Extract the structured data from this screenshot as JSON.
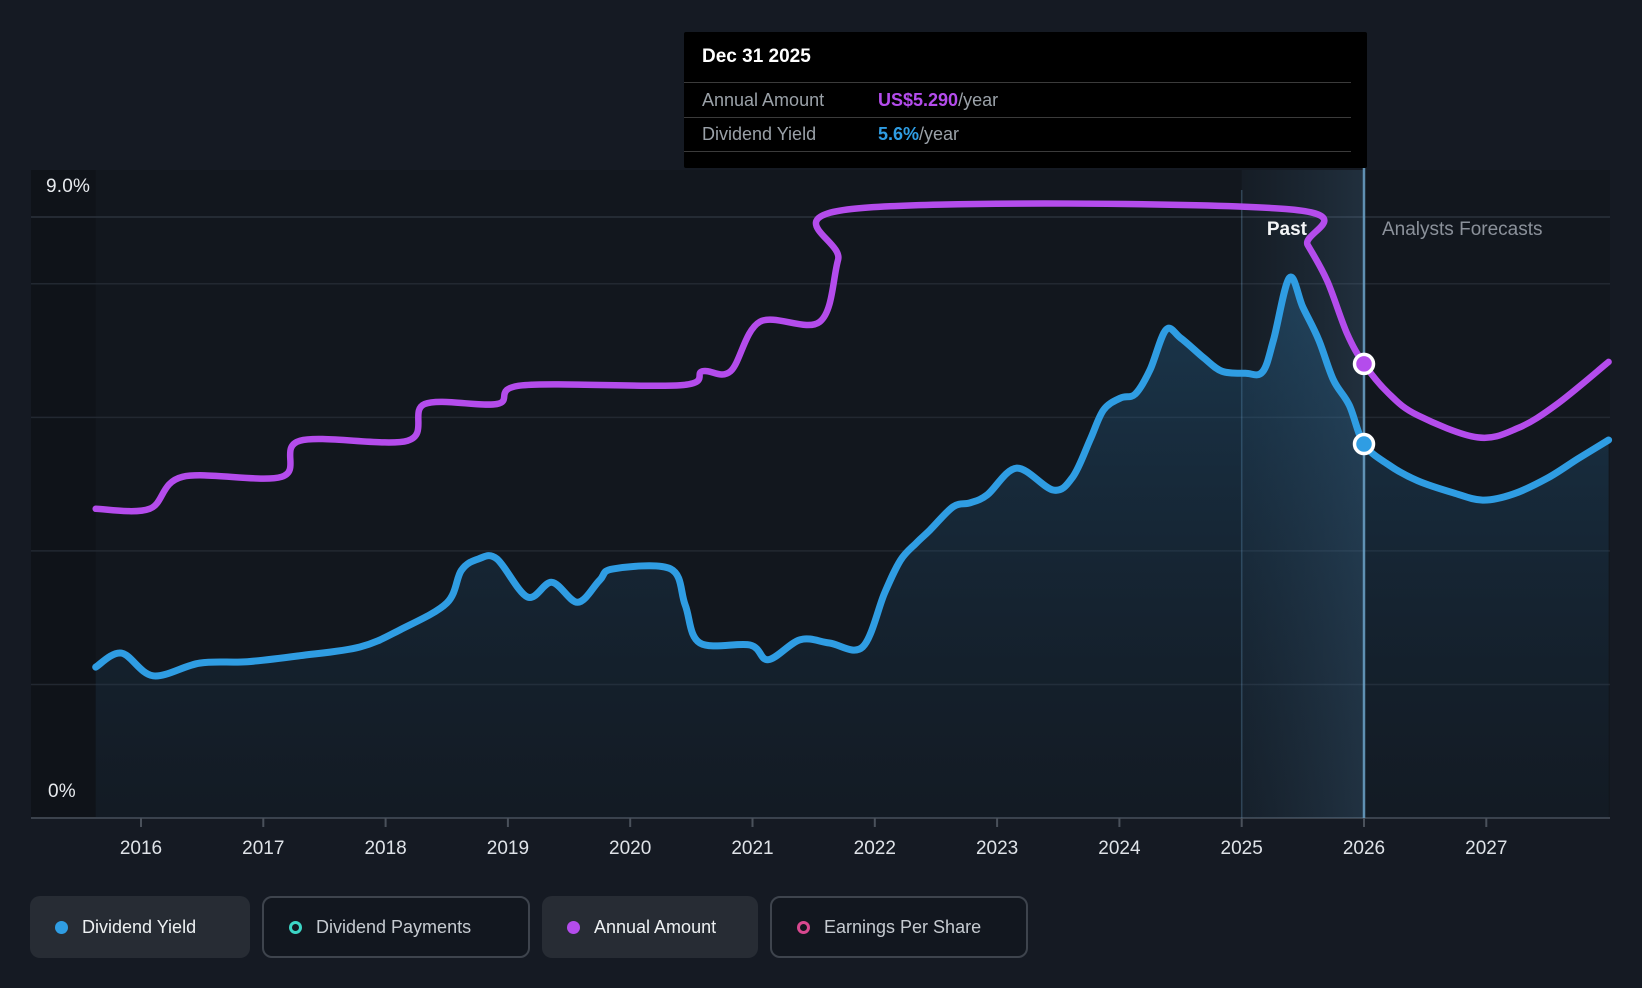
{
  "tooltip": {
    "date": "Dec 31 2025",
    "rows": [
      {
        "label": "Annual Amount",
        "value": "US$5.290",
        "suffix": "/year",
        "color": "#b44cec"
      },
      {
        "label": "Dividend Yield",
        "value": "5.6%",
        "suffix": "/year",
        "color": "#2f9de3"
      }
    ]
  },
  "period_labels": {
    "past": "Past",
    "forecast": "Analysts Forecasts"
  },
  "axis": {
    "y_top_label": "9.0%",
    "y_bottom_label": "0%",
    "x_tick_labels": [
      "2016",
      "2017",
      "2018",
      "2019",
      "2020",
      "2021",
      "2022",
      "2023",
      "2024",
      "2025",
      "2026",
      "2027"
    ]
  },
  "legend": [
    {
      "label": "Dividend Yield",
      "marker": "dot",
      "color": "#2f9de3",
      "active": true
    },
    {
      "label": "Dividend Payments",
      "marker": "ring",
      "color": "#3cd5c5",
      "active": false
    },
    {
      "label": "Annual Amount",
      "marker": "dot",
      "color": "#b44cec",
      "active": true
    },
    {
      "label": "Earnings Per Share",
      "marker": "ring",
      "color": "#d8488f",
      "active": false
    }
  ],
  "colors": {
    "background": "#151a23",
    "plot_background": "#12171e",
    "grid": "#222831",
    "grid_top": "#2b323c",
    "baseline": "#3b424c",
    "tick": "#4a515b",
    "crosshair": "#6ca3c9",
    "hover_band_left": "rgba(86,140,180,0.05)",
    "hover_band_right": "rgba(110,175,225,0.16)",
    "yield_line": "#2f9de3",
    "amount_line": "#b44cec",
    "area_top": "rgba(45,125,180,0.32)",
    "area_bottom": "rgba(30,70,105,0.08)"
  },
  "chart_data": {
    "type": "line",
    "title": "Dividend yield history and forecast",
    "x_range": [
      2015.63,
      2028.0
    ],
    "y_range_pct": [
      0,
      9.0
    ],
    "gridlines_pct": [
      2,
      4,
      6,
      8,
      9
    ],
    "grid": true,
    "legend_position": "bottom",
    "hover_year_band": [
      2025,
      2026
    ],
    "hover_date": "Dec 31 2025",
    "series": [
      {
        "name": "Dividend Yield",
        "unit": "%",
        "color": "#2f9de3",
        "area": true,
        "marker": [
          2026.0,
          5.6
        ],
        "points": [
          [
            2015.63,
            2.26
          ],
          [
            2015.84,
            2.47
          ],
          [
            2016.1,
            2.13
          ],
          [
            2016.48,
            2.32
          ],
          [
            2016.87,
            2.34
          ],
          [
            2017.3,
            2.43
          ],
          [
            2017.79,
            2.56
          ],
          [
            2018.12,
            2.82
          ],
          [
            2018.5,
            3.22
          ],
          [
            2018.62,
            3.71
          ],
          [
            2018.76,
            3.88
          ],
          [
            2018.91,
            3.88
          ],
          [
            2019.16,
            3.31
          ],
          [
            2019.36,
            3.53
          ],
          [
            2019.57,
            3.23
          ],
          [
            2019.75,
            3.56
          ],
          [
            2019.86,
            3.73
          ],
          [
            2020.33,
            3.73
          ],
          [
            2020.45,
            3.19
          ],
          [
            2020.57,
            2.62
          ],
          [
            2020.98,
            2.59
          ],
          [
            2021.13,
            2.37
          ],
          [
            2021.39,
            2.67
          ],
          [
            2021.63,
            2.62
          ],
          [
            2021.9,
            2.56
          ],
          [
            2022.08,
            3.37
          ],
          [
            2022.21,
            3.86
          ],
          [
            2022.34,
            4.12
          ],
          [
            2022.45,
            4.31
          ],
          [
            2022.64,
            4.66
          ],
          [
            2022.78,
            4.72
          ],
          [
            2022.92,
            4.84
          ],
          [
            2023.16,
            5.24
          ],
          [
            2023.46,
            4.91
          ],
          [
            2023.62,
            5.11
          ],
          [
            2023.76,
            5.66
          ],
          [
            2023.87,
            6.11
          ],
          [
            2024.01,
            6.29
          ],
          [
            2024.13,
            6.35
          ],
          [
            2024.25,
            6.71
          ],
          [
            2024.38,
            7.31
          ],
          [
            2024.5,
            7.19
          ],
          [
            2024.69,
            6.89
          ],
          [
            2024.84,
            6.69
          ],
          [
            2025.03,
            6.66
          ],
          [
            2025.17,
            6.68
          ],
          [
            2025.26,
            7.16
          ],
          [
            2025.39,
            8.09
          ],
          [
            2025.5,
            7.65
          ],
          [
            2025.63,
            7.16
          ],
          [
            2025.75,
            6.56
          ],
          [
            2025.88,
            6.18
          ],
          [
            2026.0,
            5.6
          ],
          [
            2026.2,
            5.29
          ],
          [
            2026.44,
            5.05
          ],
          [
            2026.73,
            4.87
          ],
          [
            2026.97,
            4.76
          ],
          [
            2027.22,
            4.85
          ],
          [
            2027.5,
            5.09
          ],
          [
            2027.75,
            5.38
          ],
          [
            2028.0,
            5.66
          ]
        ]
      },
      {
        "name": "Annual Amount",
        "unit": "display-equivalent % on yield axis (value is US$/year)",
        "color": "#b44cec",
        "area": false,
        "marker": [
          2026.0,
          6.8
        ],
        "tooltip_value": "US$5.290/year",
        "points": [
          [
            2015.63,
            4.63
          ],
          [
            2016.07,
            4.63
          ],
          [
            2016.34,
            5.11
          ],
          [
            2017.15,
            5.11
          ],
          [
            2017.3,
            5.65
          ],
          [
            2018.18,
            5.65
          ],
          [
            2018.32,
            6.2
          ],
          [
            2018.91,
            6.2
          ],
          [
            2019.12,
            6.48
          ],
          [
            2020.41,
            6.48
          ],
          [
            2020.59,
            6.69
          ],
          [
            2020.82,
            6.69
          ],
          [
            2021.06,
            7.43
          ],
          [
            2021.55,
            7.43
          ],
          [
            2021.7,
            8.36
          ],
          [
            2021.81,
            9.12
          ],
          [
            2025.36,
            9.12
          ],
          [
            2025.54,
            8.58
          ],
          [
            2025.7,
            8.04
          ],
          [
            2025.86,
            7.26
          ],
          [
            2026.0,
            6.8
          ],
          [
            2026.2,
            6.36
          ],
          [
            2026.44,
            6.03
          ],
          [
            2026.93,
            5.7
          ],
          [
            2027.26,
            5.84
          ],
          [
            2027.58,
            6.2
          ],
          [
            2028.0,
            6.83
          ]
        ]
      }
    ]
  }
}
